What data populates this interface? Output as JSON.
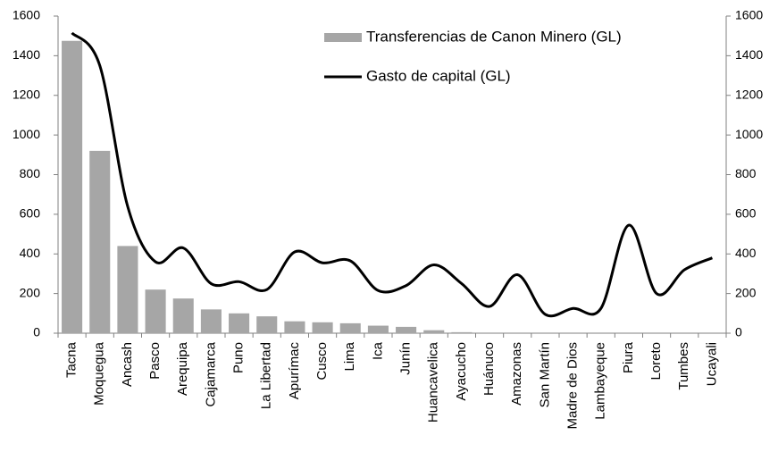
{
  "chart_data": {
    "type": "bar",
    "categories": [
      "Tacna",
      "Moquegua",
      "Ancash",
      "Pasco",
      "Arequipa",
      "Cajamarca",
      "Puno",
      "La Libertad",
      "Apurímac",
      "Cusco",
      "Lima",
      "Ica",
      "Junín",
      "Huancavelica",
      "Ayacucho",
      "Huánuco",
      "Amazonas",
      "San Martín",
      "Madre de Dios",
      "Lambayeque",
      "Piura",
      "Loreto",
      "Tumbes",
      "Ucayali"
    ],
    "series": [
      {
        "name": "Transferencias de Canon Minero (GL)",
        "type": "bar",
        "color": "#a6a6a6",
        "values": [
          1475,
          920,
          440,
          220,
          175,
          120,
          100,
          85,
          60,
          55,
          50,
          38,
          32,
          15,
          5,
          0,
          0,
          0,
          0,
          0,
          0,
          0,
          0,
          0
        ]
      },
      {
        "name": "Gasto de capital (GL)",
        "type": "line",
        "color": "#000000",
        "axis": "y2",
        "values": [
          1515,
          1350,
          640,
          360,
          430,
          250,
          260,
          220,
          410,
          355,
          365,
          215,
          240,
          345,
          250,
          135,
          295,
          95,
          125,
          125,
          545,
          200,
          320,
          380
        ]
      }
    ],
    "ylim": [
      0,
      1600
    ],
    "yticks": [
      0,
      200,
      400,
      600,
      800,
      1000,
      1200,
      1400,
      1600
    ],
    "y2lim": [
      0,
      1600
    ],
    "y2ticks": [
      0,
      200,
      400,
      600,
      800,
      1000,
      1200,
      1400,
      1600
    ]
  }
}
